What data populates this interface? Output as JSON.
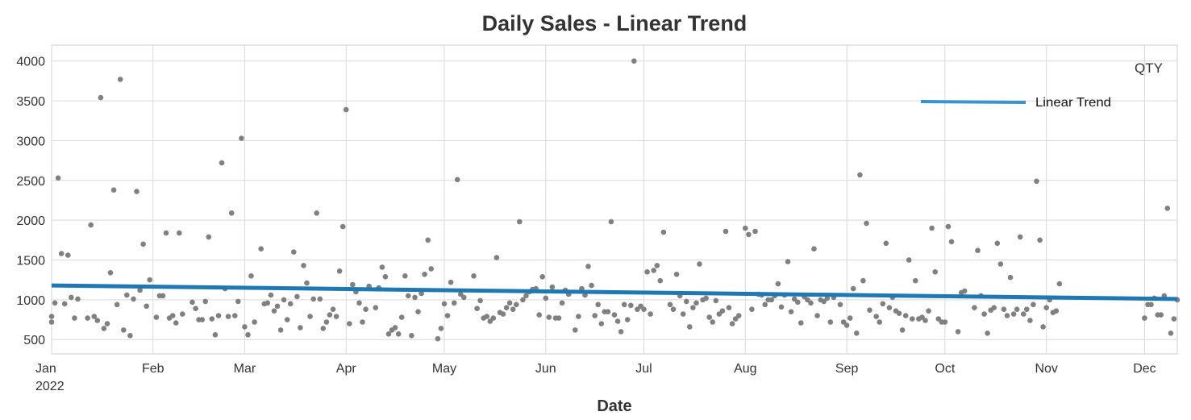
{
  "chart_data": {
    "type": "scatter",
    "title": "Daily Sales - Linear Trend",
    "xlabel": "Date",
    "ylabel": "",
    "series_label": "QTY",
    "x_ticks": [
      {
        "date": "2022-01-01",
        "label": "Jan",
        "sublabel": "2022"
      },
      {
        "date": "2022-02-01",
        "label": "Feb"
      },
      {
        "date": "2022-03-01",
        "label": "Mar"
      },
      {
        "date": "2022-04-01",
        "label": "Apr"
      },
      {
        "date": "2022-05-01",
        "label": "May"
      },
      {
        "date": "2022-06-01",
        "label": "Jun"
      },
      {
        "date": "2022-07-01",
        "label": "Jul"
      },
      {
        "date": "2022-08-01",
        "label": "Aug"
      },
      {
        "date": "2022-09-01",
        "label": "Sep"
      },
      {
        "date": "2022-10-01",
        "label": "Oct"
      },
      {
        "date": "2022-11-01",
        "label": "Nov"
      },
      {
        "date": "2022-12-01",
        "label": "Dec"
      }
    ],
    "y_ticks": [
      500,
      1000,
      1500,
      2000,
      2500,
      3000,
      3500,
      4000
    ],
    "xlim": [
      "2022-01-01",
      "2022-12-11"
    ],
    "ylim": [
      320,
      4200
    ],
    "grid": true,
    "legend": {
      "position": "top-right",
      "entries": [
        {
          "name": "Linear Trend",
          "color": "#3a93cf"
        }
      ]
    },
    "trend": {
      "name": "Linear Trend",
      "color": "#1f77b4",
      "start": {
        "date": "2022-01-01",
        "value": 1180
      },
      "end": {
        "date": "2022-12-11",
        "value": 1010
      }
    },
    "points_color": "#808080",
    "points": [
      [
        "2022-01-01",
        720
      ],
      [
        "2022-01-01",
        790
      ],
      [
        "2022-01-02",
        960
      ],
      [
        "2022-01-03",
        2530
      ],
      [
        "2022-01-04",
        1580
      ],
      [
        "2022-01-05",
        950
      ],
      [
        "2022-01-06",
        1560
      ],
      [
        "2022-01-07",
        1030
      ],
      [
        "2022-01-08",
        770
      ],
      [
        "2022-01-09",
        1010
      ],
      [
        "2022-01-12",
        770
      ],
      [
        "2022-01-13",
        1940
      ],
      [
        "2022-01-14",
        790
      ],
      [
        "2022-01-15",
        740
      ],
      [
        "2022-01-16",
        3540
      ],
      [
        "2022-01-17",
        640
      ],
      [
        "2022-01-18",
        700
      ],
      [
        "2022-01-19",
        1340
      ],
      [
        "2022-01-20",
        2380
      ],
      [
        "2022-01-21",
        940
      ],
      [
        "2022-01-22",
        3770
      ],
      [
        "2022-01-23",
        620
      ],
      [
        "2022-01-24",
        1060
      ],
      [
        "2022-01-25",
        550
      ],
      [
        "2022-01-26",
        1010
      ],
      [
        "2022-01-27",
        2360
      ],
      [
        "2022-01-28",
        1120
      ],
      [
        "2022-01-29",
        1700
      ],
      [
        "2022-01-30",
        920
      ],
      [
        "2022-01-31",
        1250
      ],
      [
        "2022-02-02",
        780
      ],
      [
        "2022-02-03",
        1050
      ],
      [
        "2022-02-04",
        1050
      ],
      [
        "2022-02-05",
        1840
      ],
      [
        "2022-02-06",
        770
      ],
      [
        "2022-02-07",
        800
      ],
      [
        "2022-02-08",
        710
      ],
      [
        "2022-02-09",
        1840
      ],
      [
        "2022-02-10",
        820
      ],
      [
        "2022-02-13",
        970
      ],
      [
        "2022-02-14",
        890
      ],
      [
        "2022-02-15",
        750
      ],
      [
        "2022-02-16",
        750
      ],
      [
        "2022-02-17",
        980
      ],
      [
        "2022-02-18",
        1790
      ],
      [
        "2022-02-19",
        760
      ],
      [
        "2022-02-20",
        560
      ],
      [
        "2022-02-21",
        800
      ],
      [
        "2022-02-22",
        2720
      ],
      [
        "2022-02-23",
        1140
      ],
      [
        "2022-02-24",
        790
      ],
      [
        "2022-02-25",
        2090
      ],
      [
        "2022-02-26",
        800
      ],
      [
        "2022-02-27",
        980
      ],
      [
        "2022-02-28",
        3030
      ],
      [
        "2022-03-01",
        660
      ],
      [
        "2022-03-02",
        560
      ],
      [
        "2022-03-03",
        1300
      ],
      [
        "2022-03-04",
        720
      ],
      [
        "2022-03-06",
        1640
      ],
      [
        "2022-03-07",
        950
      ],
      [
        "2022-03-08",
        960
      ],
      [
        "2022-03-09",
        1060
      ],
      [
        "2022-03-10",
        860
      ],
      [
        "2022-03-11",
        920
      ],
      [
        "2022-03-12",
        620
      ],
      [
        "2022-03-13",
        1000
      ],
      [
        "2022-03-14",
        750
      ],
      [
        "2022-03-15",
        950
      ],
      [
        "2022-03-16",
        1600
      ],
      [
        "2022-03-17",
        1040
      ],
      [
        "2022-03-18",
        650
      ],
      [
        "2022-03-19",
        1430
      ],
      [
        "2022-03-20",
        1210
      ],
      [
        "2022-03-21",
        790
      ],
      [
        "2022-03-22",
        1010
      ],
      [
        "2022-03-23",
        2090
      ],
      [
        "2022-03-24",
        1010
      ],
      [
        "2022-03-25",
        640
      ],
      [
        "2022-03-26",
        720
      ],
      [
        "2022-03-27",
        810
      ],
      [
        "2022-03-28",
        880
      ],
      [
        "2022-03-29",
        790
      ],
      [
        "2022-03-30",
        1360
      ],
      [
        "2022-03-31",
        1920
      ],
      [
        "2022-04-01",
        3390
      ],
      [
        "2022-04-02",
        700
      ],
      [
        "2022-04-03",
        1190
      ],
      [
        "2022-04-04",
        1100
      ],
      [
        "2022-04-05",
        960
      ],
      [
        "2022-04-06",
        720
      ],
      [
        "2022-04-07",
        880
      ],
      [
        "2022-04-08",
        1170
      ],
      [
        "2022-04-10",
        900
      ],
      [
        "2022-04-11",
        1150
      ],
      [
        "2022-04-12",
        1410
      ],
      [
        "2022-04-13",
        1290
      ],
      [
        "2022-04-14",
        570
      ],
      [
        "2022-04-15",
        620
      ],
      [
        "2022-04-16",
        650
      ],
      [
        "2022-04-17",
        570
      ],
      [
        "2022-04-18",
        780
      ],
      [
        "2022-04-19",
        1300
      ],
      [
        "2022-04-20",
        1050
      ],
      [
        "2022-04-21",
        550
      ],
      [
        "2022-04-22",
        1030
      ],
      [
        "2022-04-23",
        850
      ],
      [
        "2022-04-24",
        1080
      ],
      [
        "2022-04-25",
        1320
      ],
      [
        "2022-04-26",
        1750
      ],
      [
        "2022-04-27",
        1390
      ],
      [
        "2022-04-29",
        510
      ],
      [
        "2022-04-30",
        640
      ],
      [
        "2022-05-01",
        950
      ],
      [
        "2022-05-02",
        800
      ],
      [
        "2022-05-03",
        1220
      ],
      [
        "2022-05-04",
        960
      ],
      [
        "2022-05-05",
        2510
      ],
      [
        "2022-05-06",
        1070
      ],
      [
        "2022-05-07",
        1030
      ],
      [
        "2022-05-10",
        1300
      ],
      [
        "2022-05-11",
        890
      ],
      [
        "2022-05-12",
        990
      ],
      [
        "2022-05-13",
        770
      ],
      [
        "2022-05-14",
        790
      ],
      [
        "2022-05-15",
        730
      ],
      [
        "2022-05-16",
        770
      ],
      [
        "2022-05-17",
        1530
      ],
      [
        "2022-05-18",
        840
      ],
      [
        "2022-05-19",
        820
      ],
      [
        "2022-05-20",
        900
      ],
      [
        "2022-05-21",
        960
      ],
      [
        "2022-05-22",
        880
      ],
      [
        "2022-05-23",
        940
      ],
      [
        "2022-05-24",
        1980
      ],
      [
        "2022-05-25",
        1000
      ],
      [
        "2022-05-26",
        1050
      ],
      [
        "2022-05-27",
        1100
      ],
      [
        "2022-05-28",
        1130
      ],
      [
        "2022-05-29",
        1140
      ],
      [
        "2022-05-30",
        810
      ],
      [
        "2022-05-31",
        1290
      ],
      [
        "2022-06-01",
        1020
      ],
      [
        "2022-06-02",
        780
      ],
      [
        "2022-06-03",
        1160
      ],
      [
        "2022-06-04",
        770
      ],
      [
        "2022-06-05",
        770
      ],
      [
        "2022-06-06",
        960
      ],
      [
        "2022-06-07",
        1120
      ],
      [
        "2022-06-08",
        1070
      ],
      [
        "2022-06-10",
        620
      ],
      [
        "2022-06-11",
        790
      ],
      [
        "2022-06-12",
        1140
      ],
      [
        "2022-06-13",
        1060
      ],
      [
        "2022-06-14",
        1420
      ],
      [
        "2022-06-15",
        1180
      ],
      [
        "2022-06-16",
        800
      ],
      [
        "2022-06-17",
        940
      ],
      [
        "2022-06-18",
        700
      ],
      [
        "2022-06-19",
        850
      ],
      [
        "2022-06-20",
        850
      ],
      [
        "2022-06-21",
        1980
      ],
      [
        "2022-06-22",
        810
      ],
      [
        "2022-06-23",
        730
      ],
      [
        "2022-06-24",
        600
      ],
      [
        "2022-06-25",
        940
      ],
      [
        "2022-06-26",
        750
      ],
      [
        "2022-06-27",
        930
      ],
      [
        "2022-06-28",
        4000
      ],
      [
        "2022-06-29",
        880
      ],
      [
        "2022-06-30",
        920
      ],
      [
        "2022-07-01",
        880
      ],
      [
        "2022-07-02",
        1350
      ],
      [
        "2022-07-03",
        820
      ],
      [
        "2022-07-04",
        1370
      ],
      [
        "2022-07-05",
        1430
      ],
      [
        "2022-07-06",
        1240
      ],
      [
        "2022-07-07",
        1850
      ],
      [
        "2022-07-09",
        940
      ],
      [
        "2022-07-10",
        880
      ],
      [
        "2022-07-11",
        1320
      ],
      [
        "2022-07-12",
        1050
      ],
      [
        "2022-07-13",
        820
      ],
      [
        "2022-07-14",
        980
      ],
      [
        "2022-07-15",
        660
      ],
      [
        "2022-07-16",
        900
      ],
      [
        "2022-07-17",
        960
      ],
      [
        "2022-07-18",
        1450
      ],
      [
        "2022-07-19",
        1000
      ],
      [
        "2022-07-20",
        1020
      ],
      [
        "2022-07-21",
        780
      ],
      [
        "2022-07-22",
        720
      ],
      [
        "2022-07-23",
        990
      ],
      [
        "2022-07-24",
        820
      ],
      [
        "2022-07-25",
        860
      ],
      [
        "2022-07-26",
        1860
      ],
      [
        "2022-07-27",
        900
      ],
      [
        "2022-07-28",
        700
      ],
      [
        "2022-07-29",
        760
      ],
      [
        "2022-07-30",
        800
      ],
      [
        "2022-08-01",
        1900
      ],
      [
        "2022-08-02",
        1820
      ],
      [
        "2022-08-03",
        880
      ],
      [
        "2022-08-04",
        1860
      ],
      [
        "2022-08-05",
        1070
      ],
      [
        "2022-08-06",
        1060
      ],
      [
        "2022-08-07",
        940
      ],
      [
        "2022-08-08",
        1000
      ],
      [
        "2022-08-09",
        1000
      ],
      [
        "2022-08-10",
        1050
      ],
      [
        "2022-08-11",
        1200
      ],
      [
        "2022-08-12",
        910
      ],
      [
        "2022-08-13",
        1060
      ],
      [
        "2022-08-14",
        1480
      ],
      [
        "2022-08-15",
        850
      ],
      [
        "2022-08-16",
        1010
      ],
      [
        "2022-08-17",
        970
      ],
      [
        "2022-08-18",
        710
      ],
      [
        "2022-08-19",
        1040
      ],
      [
        "2022-08-20",
        1000
      ],
      [
        "2022-08-21",
        960
      ],
      [
        "2022-08-22",
        1640
      ],
      [
        "2022-08-23",
        800
      ],
      [
        "2022-08-24",
        1000
      ],
      [
        "2022-08-25",
        980
      ],
      [
        "2022-08-26",
        1020
      ],
      [
        "2022-08-27",
        720
      ],
      [
        "2022-08-28",
        1030
      ],
      [
        "2022-08-30",
        940
      ],
      [
        "2022-08-31",
        720
      ],
      [
        "2022-09-01",
        680
      ],
      [
        "2022-09-02",
        770
      ],
      [
        "2022-09-03",
        1140
      ],
      [
        "2022-09-04",
        580
      ],
      [
        "2022-09-05",
        2570
      ],
      [
        "2022-09-06",
        1240
      ],
      [
        "2022-09-07",
        1960
      ],
      [
        "2022-09-08",
        870
      ],
      [
        "2022-09-10",
        790
      ],
      [
        "2022-09-11",
        720
      ],
      [
        "2022-09-12",
        950
      ],
      [
        "2022-09-13",
        1710
      ],
      [
        "2022-09-14",
        900
      ],
      [
        "2022-09-15",
        1030
      ],
      [
        "2022-09-16",
        860
      ],
      [
        "2022-09-17",
        830
      ],
      [
        "2022-09-18",
        620
      ],
      [
        "2022-09-19",
        800
      ],
      [
        "2022-09-20",
        1500
      ],
      [
        "2022-09-21",
        760
      ],
      [
        "2022-09-22",
        1240
      ],
      [
        "2022-09-23",
        760
      ],
      [
        "2022-09-24",
        780
      ],
      [
        "2022-09-25",
        740
      ],
      [
        "2022-09-26",
        860
      ],
      [
        "2022-09-27",
        1900
      ],
      [
        "2022-09-28",
        1350
      ],
      [
        "2022-09-29",
        760
      ],
      [
        "2022-09-30",
        720
      ],
      [
        "2022-10-01",
        720
      ],
      [
        "2022-10-02",
        1920
      ],
      [
        "2022-10-03",
        1730
      ],
      [
        "2022-10-05",
        600
      ],
      [
        "2022-10-06",
        1090
      ],
      [
        "2022-10-07",
        1110
      ],
      [
        "2022-10-10",
        900
      ],
      [
        "2022-10-11",
        1620
      ],
      [
        "2022-10-12",
        1050
      ],
      [
        "2022-10-13",
        820
      ],
      [
        "2022-10-14",
        580
      ],
      [
        "2022-10-15",
        870
      ],
      [
        "2022-10-16",
        900
      ],
      [
        "2022-10-17",
        1710
      ],
      [
        "2022-10-18",
        1450
      ],
      [
        "2022-10-19",
        880
      ],
      [
        "2022-10-20",
        800
      ],
      [
        "2022-10-21",
        1280
      ],
      [
        "2022-10-22",
        820
      ],
      [
        "2022-10-23",
        880
      ],
      [
        "2022-10-24",
        1790
      ],
      [
        "2022-10-25",
        820
      ],
      [
        "2022-10-26",
        880
      ],
      [
        "2022-10-27",
        740
      ],
      [
        "2022-10-28",
        940
      ],
      [
        "2022-10-29",
        2490
      ],
      [
        "2022-10-30",
        1750
      ],
      [
        "2022-10-31",
        660
      ],
      [
        "2022-11-01",
        900
      ],
      [
        "2022-11-02",
        1000
      ],
      [
        "2022-11-03",
        840
      ],
      [
        "2022-11-04",
        860
      ],
      [
        "2022-11-05",
        1200
      ],
      [
        "2022-12-01",
        770
      ],
      [
        "2022-12-02",
        940
      ],
      [
        "2022-12-03",
        940
      ],
      [
        "2022-12-04",
        1020
      ],
      [
        "2022-12-05",
        810
      ],
      [
        "2022-12-06",
        810
      ],
      [
        "2022-12-07",
        1050
      ],
      [
        "2022-12-08",
        2150
      ],
      [
        "2022-12-09",
        580
      ],
      [
        "2022-12-10",
        760
      ],
      [
        "2022-12-11",
        1000
      ]
    ]
  }
}
